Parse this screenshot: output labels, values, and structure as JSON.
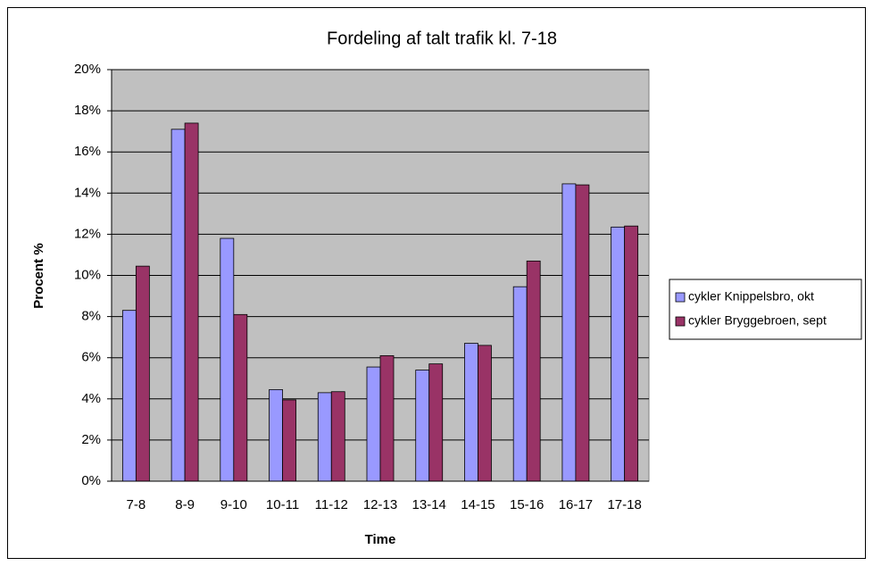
{
  "chart_data": {
    "type": "bar",
    "title": "Fordeling af talt trafik kl. 7-18",
    "x_label": "Time",
    "y_label": "Procent %",
    "categories": [
      "7-8",
      "8-9",
      "9-10",
      "10-11",
      "11-12",
      "12-13",
      "13-14",
      "14-15",
      "15-16",
      "16-17",
      "17-18"
    ],
    "series": [
      {
        "name": "cykler Knippelsbro, okt",
        "color": "#9999ff",
        "values": [
          8.3,
          17.1,
          11.8,
          4.45,
          4.3,
          5.55,
          5.4,
          6.7,
          9.45,
          14.45,
          12.35
        ]
      },
      {
        "name": "cykler Bryggebroen, sept",
        "color": "#993366",
        "values": [
          10.45,
          17.4,
          8.1,
          3.95,
          4.35,
          6.1,
          5.7,
          6.6,
          10.7,
          14.4,
          12.4
        ]
      }
    ],
    "ylim": [
      0,
      20
    ],
    "yticks": [
      {
        "value": 0,
        "label": "0%"
      },
      {
        "value": 2,
        "label": "2%"
      },
      {
        "value": 4,
        "label": "4%"
      },
      {
        "value": 6,
        "label": "6%"
      },
      {
        "value": 8,
        "label": "8%"
      },
      {
        "value": 10,
        "label": "10%"
      },
      {
        "value": 12,
        "label": "12%"
      },
      {
        "value": 14,
        "label": "14%"
      },
      {
        "value": 16,
        "label": "16%"
      },
      {
        "value": 18,
        "label": "18%"
      },
      {
        "value": 20,
        "label": "20%"
      }
    ],
    "grid": true,
    "legend": "right"
  }
}
